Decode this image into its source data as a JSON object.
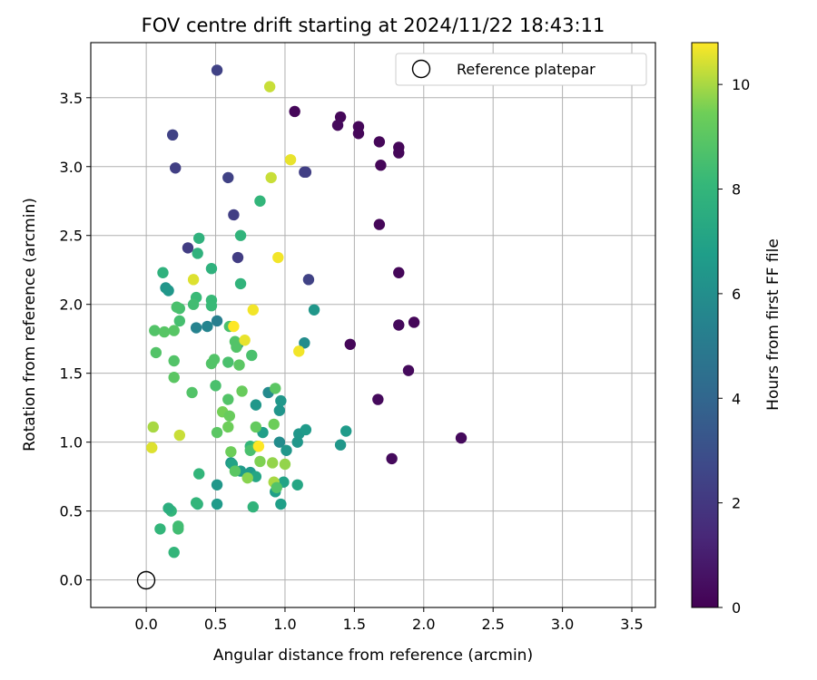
{
  "chart_data": {
    "type": "scatter",
    "title": "FOV centre drift starting at 2024/11/22 18:43:11",
    "xlabel": "Angular distance from reference (arcmin)",
    "ylabel": "Rotation from reference (arcmin)",
    "xlim": [
      -0.4,
      3.67
    ],
    "ylim": [
      -0.2,
      3.9
    ],
    "xticks": [
      "0.0",
      "0.5",
      "1.0",
      "1.5",
      "2.0",
      "2.5",
      "3.0",
      "3.5"
    ],
    "yticks": [
      "0.0",
      "0.5",
      "1.0",
      "1.5",
      "2.0",
      "2.5",
      "3.0",
      "3.5"
    ],
    "grid": true,
    "legend": {
      "position": "top-right",
      "label": "Reference platepar",
      "marker": "open-circle"
    },
    "reference_point": {
      "x": 0.0,
      "y": 0.0
    },
    "colorbar": {
      "label": "Hours from first FF file",
      "range": [
        0,
        10.8
      ],
      "ticks": [
        "0",
        "2",
        "4",
        "6",
        "8",
        "10"
      ],
      "colormap": "viridis"
    },
    "points": [
      [
        1.07,
        3.4,
        0.2
      ],
      [
        1.4,
        3.36,
        0.2
      ],
      [
        1.53,
        3.29,
        0.2
      ],
      [
        1.38,
        3.3,
        0.3
      ],
      [
        1.53,
        3.24,
        0.2
      ],
      [
        1.68,
        3.18,
        0.2
      ],
      [
        1.82,
        3.14,
        0.2
      ],
      [
        1.82,
        3.1,
        0.2
      ],
      [
        1.69,
        3.01,
        0.2
      ],
      [
        1.68,
        2.58,
        0.2
      ],
      [
        1.82,
        2.23,
        0.2
      ],
      [
        1.93,
        1.87,
        0.2
      ],
      [
        1.82,
        1.85,
        0.3
      ],
      [
        1.47,
        1.71,
        0.2
      ],
      [
        1.89,
        1.52,
        0.3
      ],
      [
        1.67,
        1.31,
        0.3
      ],
      [
        2.27,
        1.03,
        0.3
      ],
      [
        1.77,
        0.88,
        0.3
      ],
      [
        0.51,
        3.7,
        2.4
      ],
      [
        0.19,
        3.23,
        2.4
      ],
      [
        0.21,
        2.99,
        2.3
      ],
      [
        0.59,
        2.92,
        2.4
      ],
      [
        1.14,
        2.96,
        2.3
      ],
      [
        1.15,
        2.96,
        2.3
      ],
      [
        0.63,
        2.65,
        2.3
      ],
      [
        0.3,
        2.41,
        2.2
      ],
      [
        0.66,
        2.34,
        2.2
      ],
      [
        1.17,
        2.18,
        2.4
      ],
      [
        0.51,
        1.88,
        5.2
      ],
      [
        0.44,
        1.84,
        5.5
      ],
      [
        0.36,
        1.83,
        5.4
      ],
      [
        0.66,
        1.71,
        5.8
      ],
      [
        1.14,
        1.72,
        5.9
      ],
      [
        1.21,
        1.96,
        6.4
      ],
      [
        0.88,
        1.36,
        5.8
      ],
      [
        0.79,
        1.27,
        6.4
      ],
      [
        0.96,
        1.23,
        6.3
      ],
      [
        0.97,
        1.3,
        6.4
      ],
      [
        0.96,
        1.0,
        5.9
      ],
      [
        1.01,
        0.94,
        6.4
      ],
      [
        1.09,
        1.0,
        6.4
      ],
      [
        1.1,
        1.06,
        6.4
      ],
      [
        1.15,
        1.09,
        6.6
      ],
      [
        1.4,
        0.98,
        6.4
      ],
      [
        1.44,
        1.08,
        6.6
      ],
      [
        0.84,
        1.07,
        6.8
      ],
      [
        0.61,
        0.85,
        6.4
      ],
      [
        0.68,
        0.79,
        6.6
      ],
      [
        0.75,
        0.78,
        6.6
      ],
      [
        0.51,
        0.69,
        6.4
      ],
      [
        0.51,
        0.55,
        6.6
      ],
      [
        0.93,
        0.64,
        6.8
      ],
      [
        0.97,
        0.55,
        6.8
      ],
      [
        0.99,
        0.71,
        7.0
      ],
      [
        1.09,
        0.69,
        7.2
      ],
      [
        0.79,
        0.75,
        7.2
      ],
      [
        0.62,
        0.84,
        7.0
      ],
      [
        0.14,
        2.12,
        6.3
      ],
      [
        0.16,
        2.1,
        6.4
      ],
      [
        0.12,
        2.23,
        7.8
      ],
      [
        0.38,
        2.48,
        7.8
      ],
      [
        0.37,
        2.37,
        7.8
      ],
      [
        0.47,
        2.26,
        7.8
      ],
      [
        0.68,
        2.5,
        7.9
      ],
      [
        0.82,
        2.75,
        8.0
      ],
      [
        0.68,
        2.15,
        7.9
      ],
      [
        0.36,
        2.05,
        8.2
      ],
      [
        0.47,
        2.03,
        8.2
      ],
      [
        0.47,
        1.99,
        8.2
      ],
      [
        0.24,
        1.97,
        8.5
      ],
      [
        0.22,
        1.98,
        8.6
      ],
      [
        0.34,
        2.0,
        8.4
      ],
      [
        0.24,
        1.88,
        8.5
      ],
      [
        0.06,
        1.81,
        8.8
      ],
      [
        0.13,
        1.8,
        8.9
      ],
      [
        0.2,
        1.81,
        8.9
      ],
      [
        0.07,
        1.65,
        8.8
      ],
      [
        0.2,
        1.59,
        8.8
      ],
      [
        0.47,
        1.57,
        8.8
      ],
      [
        0.49,
        1.6,
        8.8
      ],
      [
        0.59,
        1.58,
        8.6
      ],
      [
        0.6,
        1.84,
        8.6
      ],
      [
        0.64,
        1.73,
        8.8
      ],
      [
        0.65,
        1.69,
        8.8
      ],
      [
        0.76,
        1.63,
        8.6
      ],
      [
        0.67,
        1.56,
        9.0
      ],
      [
        0.2,
        1.47,
        9.0
      ],
      [
        0.33,
        1.36,
        8.8
      ],
      [
        0.5,
        1.41,
        8.6
      ],
      [
        0.59,
        1.31,
        8.8
      ],
      [
        0.69,
        1.37,
        9.3
      ],
      [
        0.93,
        1.39,
        9.0
      ],
      [
        0.92,
        1.13,
        9.4
      ],
      [
        0.79,
        1.11,
        9.2
      ],
      [
        0.55,
        1.22,
        9.5
      ],
      [
        0.6,
        1.19,
        9.3
      ],
      [
        0.59,
        1.11,
        9.4
      ],
      [
        0.51,
        1.07,
        9.0
      ],
      [
        0.75,
        0.97,
        8.0
      ],
      [
        0.75,
        0.94,
        8.6
      ],
      [
        0.8,
        0.97,
        8.8
      ],
      [
        0.64,
        0.79,
        9.0
      ],
      [
        0.61,
        0.93,
        9.4
      ],
      [
        0.82,
        0.86,
        9.6
      ],
      [
        0.91,
        0.85,
        9.8
      ],
      [
        1.0,
        0.84,
        9.8
      ],
      [
        0.92,
        0.71,
        10.0
      ],
      [
        0.73,
        0.74,
        9.7
      ],
      [
        0.94,
        0.67,
        8.8
      ],
      [
        0.38,
        0.77,
        8.0
      ],
      [
        0.37,
        0.55,
        7.8
      ],
      [
        0.36,
        0.56,
        8.0
      ],
      [
        0.77,
        0.53,
        7.9
      ],
      [
        0.18,
        0.5,
        8.0
      ],
      [
        0.16,
        0.52,
        7.6
      ],
      [
        0.23,
        0.39,
        8.4
      ],
      [
        0.23,
        0.37,
        8.4
      ],
      [
        0.1,
        0.37,
        8.0
      ],
      [
        0.2,
        0.2,
        8.0
      ],
      [
        0.05,
        1.11,
        10.0
      ],
      [
        0.04,
        0.96,
        10.5
      ],
      [
        0.24,
        1.05,
        10.3
      ],
      [
        0.34,
        2.18,
        10.5
      ],
      [
        0.63,
        1.84,
        10.8
      ],
      [
        0.71,
        1.74,
        10.6
      ],
      [
        0.77,
        1.96,
        10.7
      ],
      [
        0.89,
        3.58,
        10.3
      ],
      [
        0.9,
        2.92,
        10.3
      ],
      [
        1.04,
        3.05,
        10.6
      ],
      [
        0.95,
        2.34,
        10.7
      ],
      [
        1.1,
        1.66,
        10.7
      ],
      [
        0.81,
        0.97,
        10.8
      ]
    ]
  }
}
